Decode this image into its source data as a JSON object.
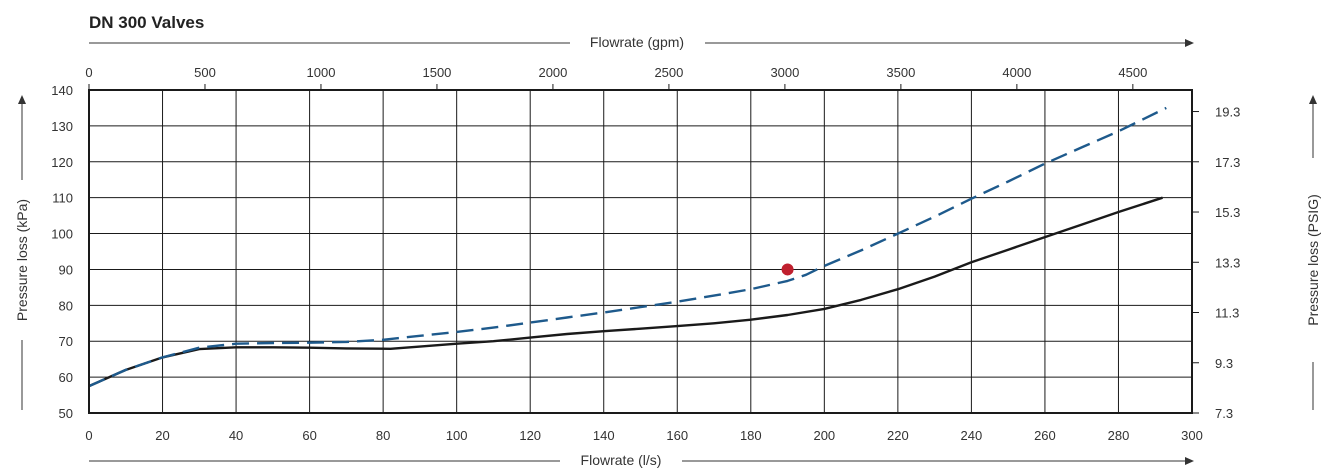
{
  "chart_data": {
    "type": "line",
    "title": "DN 300 Valves",
    "xlabel": "Flowrate (l/s)",
    "x2label": "Flowrate (gpm)",
    "ylabel": "Pressure loss (kPa)",
    "y2label": "Pressure loss (PSIG)",
    "xlim": [
      0,
      300
    ],
    "ylim": [
      50,
      140
    ],
    "x2lim": [
      0,
      4755
    ],
    "x_ticks": [
      "0",
      "20",
      "40",
      "60",
      "80",
      "100",
      "120",
      "140",
      "160",
      "180",
      "200",
      "220",
      "240",
      "260",
      "280",
      "300"
    ],
    "x2_ticks": [
      {
        "value": 0,
        "label": "0"
      },
      {
        "value": 500,
        "label": "500"
      },
      {
        "value": 1000,
        "label": "1000"
      },
      {
        "value": 1500,
        "label": "1500"
      },
      {
        "value": 2000,
        "label": "2000"
      },
      {
        "value": 2500,
        "label": "2500"
      },
      {
        "value": 3000,
        "label": "3000"
      },
      {
        "value": 3500,
        "label": "3500"
      },
      {
        "value": 4000,
        "label": "4000"
      },
      {
        "value": 4500,
        "label": "4500"
      }
    ],
    "y_ticks": [
      "50",
      "60",
      "70",
      "80",
      "90",
      "100",
      "110",
      "120",
      "130",
      "140"
    ],
    "y2_ticks": [
      {
        "kpa": 50,
        "label": "7.3"
      },
      {
        "kpa": 64,
        "label": "9.3"
      },
      {
        "kpa": 78,
        "label": "11.3"
      },
      {
        "kpa": 92,
        "label": "13.3"
      },
      {
        "kpa": 106,
        "label": "15.3"
      },
      {
        "kpa": 120,
        "label": "17.3"
      },
      {
        "kpa": 134,
        "label": "19.3"
      }
    ],
    "grid": true,
    "series": [
      {
        "style": "solid",
        "color": "#1a1a1a",
        "points": [
          [
            0,
            57.5
          ],
          [
            10,
            62
          ],
          [
            20,
            65.5
          ],
          [
            30,
            67.8
          ],
          [
            40,
            68.3
          ],
          [
            50,
            68.3
          ],
          [
            60,
            68.2
          ],
          [
            70,
            68
          ],
          [
            82,
            67.9
          ],
          [
            90,
            68.5
          ],
          [
            100,
            69.3
          ],
          [
            110,
            70
          ],
          [
            120,
            71
          ],
          [
            130,
            72
          ],
          [
            140,
            72.8
          ],
          [
            150,
            73.5
          ],
          [
            160,
            74.2
          ],
          [
            170,
            75
          ],
          [
            180,
            76
          ],
          [
            190,
            77.3
          ],
          [
            200,
            79
          ],
          [
            210,
            81.5
          ],
          [
            220,
            84.5
          ],
          [
            230,
            88
          ],
          [
            240,
            92
          ],
          [
            250,
            95.5
          ],
          [
            260,
            99
          ],
          [
            270,
            102.5
          ],
          [
            280,
            106
          ],
          [
            292,
            110
          ]
        ]
      },
      {
        "style": "dashed",
        "color": "#1e5a8c",
        "points": [
          [
            0,
            57.5
          ],
          [
            10,
            62
          ],
          [
            20,
            65.5
          ],
          [
            30,
            68.2
          ],
          [
            40,
            69.3
          ],
          [
            50,
            69.5
          ],
          [
            60,
            69.6
          ],
          [
            70,
            69.8
          ],
          [
            80,
            70.4
          ],
          [
            90,
            71.5
          ],
          [
            100,
            72.6
          ],
          [
            110,
            73.8
          ],
          [
            120,
            75.2
          ],
          [
            130,
            76.6
          ],
          [
            140,
            78
          ],
          [
            150,
            79.5
          ],
          [
            160,
            81
          ],
          [
            170,
            82.7
          ],
          [
            180,
            84.5
          ],
          [
            190,
            86.8
          ],
          [
            195,
            88.5
          ],
          [
            200,
            91
          ],
          [
            210,
            95.3
          ],
          [
            220,
            100
          ],
          [
            230,
            104.7
          ],
          [
            240,
            109.7
          ],
          [
            250,
            114.5
          ],
          [
            260,
            119.5
          ],
          [
            270,
            124
          ],
          [
            280,
            128.5
          ],
          [
            293,
            135
          ]
        ]
      }
    ],
    "markers": [
      {
        "x": 190,
        "y": 90,
        "color": "#c0202e"
      }
    ]
  }
}
